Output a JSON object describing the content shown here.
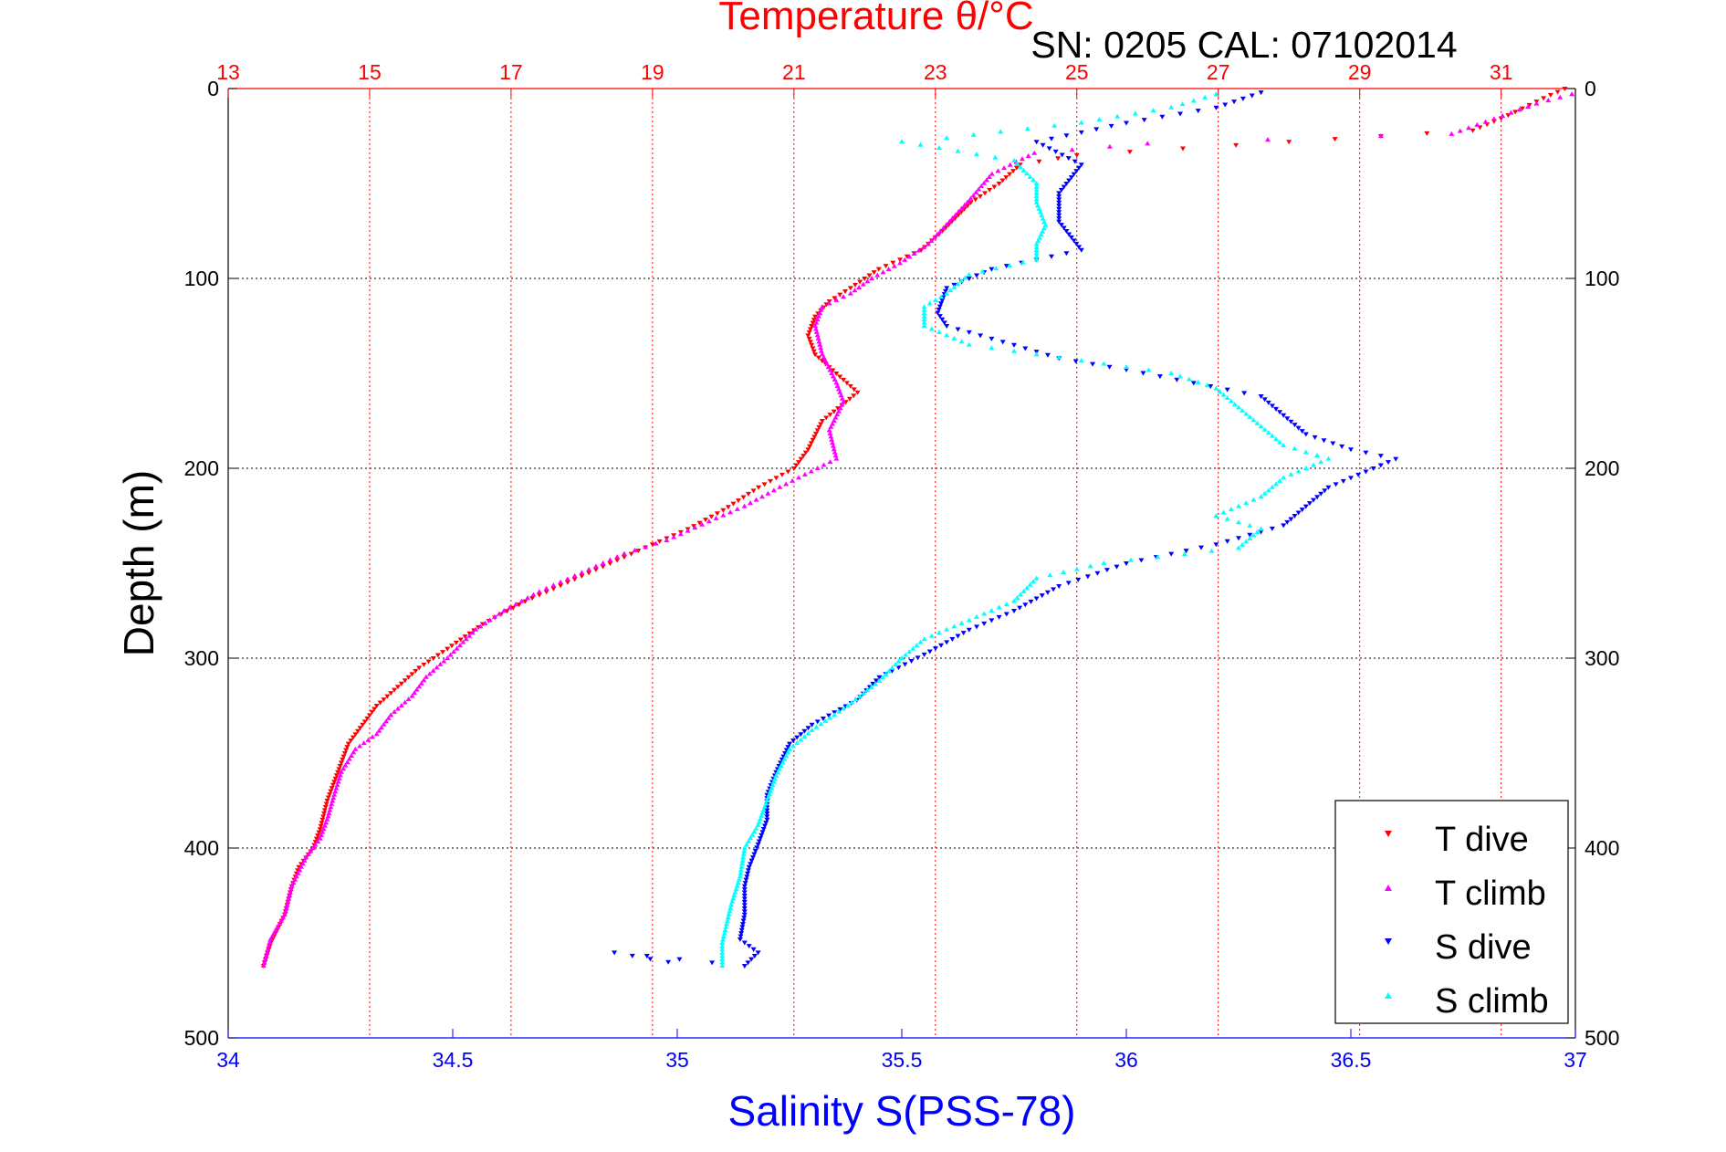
{
  "chart_data": {
    "type": "scatter",
    "title": "Temperature θ/°C",
    "subtitle": "SN: 0205  CAL: 07102014",
    "ylabel": "Depth (m)",
    "xlabel": "Salinity S(PSS-78)",
    "y_reversed": true,
    "ylim": [
      0,
      500
    ],
    "y_ticks": [
      0,
      100,
      200,
      300,
      400,
      500
    ],
    "x_salinity_lim": [
      34,
      37
    ],
    "x_salinity_ticks": [
      34,
      34.5,
      35,
      35.5,
      36,
      36.5,
      37
    ],
    "x_salinity_tick_labels": [
      "34",
      "34.5",
      "35",
      "35.5",
      "36",
      "36.5",
      "37"
    ],
    "x_temperature_lim": [
      13,
      32.05
    ],
    "x_temperature_ticks": [
      13,
      15,
      17,
      19,
      21,
      23,
      25,
      27,
      29,
      31
    ],
    "grid": true,
    "legend_position": "bottom-right",
    "colors": {
      "temperature_axis": "#ff0000",
      "salinity_axis": "#0000ff",
      "t_dive": "#ff0000",
      "t_climb": "#ff00ff",
      "s_dive": "#0000ff",
      "s_climb": "#00ffff"
    },
    "series": [
      {
        "name": "T dive",
        "axis": "temperature",
        "marker": "triangle-down",
        "color": "#ff0000",
        "points": [
          [
            31.9,
            0
          ],
          [
            31.6,
            5
          ],
          [
            31.1,
            14
          ],
          [
            30.6,
            22
          ],
          [
            28,
            28
          ],
          [
            25,
            35
          ],
          [
            24.2,
            40
          ],
          [
            23.9,
            50
          ],
          [
            23.5,
            60
          ],
          [
            23.1,
            75
          ],
          [
            22.8,
            85
          ],
          [
            22.2,
            95
          ],
          [
            21.8,
            105
          ],
          [
            21.5,
            112
          ],
          [
            21.3,
            120
          ],
          [
            21.2,
            130
          ],
          [
            21.3,
            140
          ],
          [
            21.6,
            150
          ],
          [
            21.9,
            160
          ],
          [
            21.4,
            175
          ],
          [
            21.2,
            190
          ],
          [
            21,
            200
          ],
          [
            20.5,
            210
          ],
          [
            20,
            222
          ],
          [
            19.5,
            232
          ],
          [
            19,
            240
          ],
          [
            18.4,
            250
          ],
          [
            17.8,
            260
          ],
          [
            17.2,
            270
          ],
          [
            16.6,
            282
          ],
          [
            16.1,
            295
          ],
          [
            15.7,
            305
          ],
          [
            15.4,
            315
          ],
          [
            15.1,
            325
          ],
          [
            14.9,
            335
          ],
          [
            14.7,
            345
          ],
          [
            14.6,
            355
          ],
          [
            14.5,
            365
          ],
          [
            14.4,
            375
          ],
          [
            14.3,
            390
          ],
          [
            14.2,
            400
          ],
          [
            14,
            410
          ],
          [
            13.9,
            420
          ],
          [
            13.8,
            435
          ],
          [
            13.6,
            450
          ],
          [
            13.5,
            462
          ]
        ]
      },
      {
        "name": "T climb",
        "axis": "temperature",
        "marker": "triangle-up",
        "color": "#ff00ff",
        "points": [
          [
            32,
            3
          ],
          [
            31.5,
            8
          ],
          [
            30.9,
            16
          ],
          [
            30.3,
            24
          ],
          [
            29.3,
            25
          ],
          [
            27.7,
            27
          ],
          [
            26,
            29
          ],
          [
            24.4,
            34
          ],
          [
            23.8,
            45
          ],
          [
            23.5,
            58
          ],
          [
            23.2,
            70
          ],
          [
            22.9,
            82
          ],
          [
            22.5,
            92
          ],
          [
            22.1,
            100
          ],
          [
            21.8,
            108
          ],
          [
            21.4,
            115
          ],
          [
            21.3,
            125
          ],
          [
            21.4,
            140
          ],
          [
            21.6,
            155
          ],
          [
            21.7,
            165
          ],
          [
            21.5,
            180
          ],
          [
            21.6,
            195
          ],
          [
            20.8,
            210
          ],
          [
            20.3,
            220
          ],
          [
            19.8,
            228
          ],
          [
            19.2,
            238
          ],
          [
            18.6,
            245
          ],
          [
            18,
            255
          ],
          [
            17.4,
            265
          ],
          [
            16.9,
            275
          ],
          [
            16.5,
            285
          ],
          [
            16.1,
            300
          ],
          [
            15.8,
            310
          ],
          [
            15.6,
            320
          ],
          [
            15.3,
            330
          ],
          [
            15.1,
            340
          ],
          [
            14.8,
            348
          ],
          [
            14.6,
            360
          ],
          [
            14.5,
            372
          ],
          [
            14.4,
            385
          ],
          [
            14.3,
            395
          ],
          [
            14.1,
            405
          ],
          [
            13.9,
            420
          ],
          [
            13.8,
            435
          ],
          [
            13.6,
            448
          ],
          [
            13.5,
            462
          ]
        ]
      },
      {
        "name": "S dive",
        "axis": "salinity",
        "marker": "triangle-down",
        "color": "#0000ff",
        "points": [
          [
            36.3,
            2
          ],
          [
            36.2,
            10
          ],
          [
            36,
            18
          ],
          [
            35.8,
            28
          ],
          [
            35.9,
            40
          ],
          [
            35.85,
            55
          ],
          [
            35.85,
            70
          ],
          [
            35.9,
            85
          ],
          [
            35.7,
            95
          ],
          [
            35.6,
            105
          ],
          [
            35.58,
            118
          ],
          [
            35.6,
            125
          ],
          [
            35.75,
            135
          ],
          [
            35.85,
            142
          ],
          [
            36,
            148
          ],
          [
            36.15,
            155
          ],
          [
            36.3,
            162
          ],
          [
            36.35,
            172
          ],
          [
            36.4,
            182
          ],
          [
            36.5,
            190
          ],
          [
            36.6,
            195
          ],
          [
            36.45,
            210
          ],
          [
            36.4,
            220
          ],
          [
            36.35,
            230
          ],
          [
            36.2,
            240
          ],
          [
            36,
            250
          ],
          [
            35.85,
            262
          ],
          [
            35.75,
            275
          ],
          [
            35.65,
            285
          ],
          [
            35.55,
            298
          ],
          [
            35.45,
            310
          ],
          [
            35.4,
            322
          ],
          [
            35.3,
            335
          ],
          [
            35.25,
            345
          ],
          [
            35.22,
            360
          ],
          [
            35.2,
            372
          ],
          [
            35.2,
            385
          ],
          [
            35.18,
            398
          ],
          [
            35.16,
            410
          ],
          [
            35.15,
            420
          ],
          [
            35.15,
            435
          ],
          [
            35.14,
            448
          ],
          [
            35.18,
            455
          ],
          [
            35.15,
            462
          ],
          [
            34.86,
            455
          ],
          [
            34.98,
            460
          ]
        ]
      },
      {
        "name": "S climb",
        "axis": "salinity",
        "marker": "triangle-up",
        "color": "#00ffff",
        "points": [
          [
            36.2,
            3
          ],
          [
            36.1,
            10
          ],
          [
            35.9,
            18
          ],
          [
            35.6,
            26
          ],
          [
            35.5,
            28
          ],
          [
            35.75,
            38
          ],
          [
            35.8,
            50
          ],
          [
            35.8,
            60
          ],
          [
            35.82,
            72
          ],
          [
            35.8,
            82
          ],
          [
            35.8,
            90
          ],
          [
            35.65,
            98
          ],
          [
            35.6,
            108
          ],
          [
            35.55,
            115
          ],
          [
            35.55,
            125
          ],
          [
            35.65,
            135
          ],
          [
            35.8,
            140
          ],
          [
            35.95,
            145
          ],
          [
            36.1,
            150
          ],
          [
            36.2,
            158
          ],
          [
            36.25,
            168
          ],
          [
            36.3,
            178
          ],
          [
            36.35,
            188
          ],
          [
            36.45,
            195
          ],
          [
            36.35,
            205
          ],
          [
            36.3,
            215
          ],
          [
            36.2,
            225
          ],
          [
            36.3,
            232
          ],
          [
            36.25,
            242
          ],
          [
            35.95,
            250
          ],
          [
            35.8,
            258
          ],
          [
            35.75,
            270
          ],
          [
            35.65,
            280
          ],
          [
            35.55,
            290
          ],
          [
            35.5,
            300
          ],
          [
            35.45,
            312
          ],
          [
            35.38,
            325
          ],
          [
            35.3,
            338
          ],
          [
            35.25,
            348
          ],
          [
            35.22,
            362
          ],
          [
            35.2,
            375
          ],
          [
            35.18,
            388
          ],
          [
            35.15,
            400
          ],
          [
            35.14,
            415
          ],
          [
            35.12,
            430
          ],
          [
            35.1,
            450
          ],
          [
            35.1,
            462
          ]
        ]
      }
    ]
  },
  "legend": {
    "items": [
      {
        "label": "T dive",
        "color": "#ff0000",
        "marker": "triangle-down"
      },
      {
        "label": "T climb",
        "color": "#ff00ff",
        "marker": "triangle-up"
      },
      {
        "label": "S dive",
        "color": "#0000ff",
        "marker": "triangle-down"
      },
      {
        "label": "S climb",
        "color": "#00ffff",
        "marker": "triangle-up"
      }
    ]
  }
}
